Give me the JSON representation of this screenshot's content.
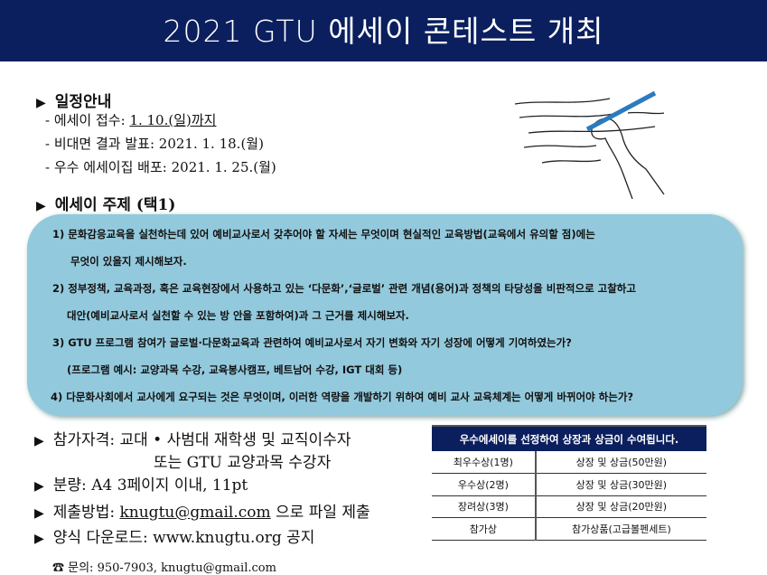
{
  "title": "2021 GTU 에세이 콘테스트 개최",
  "schedule": {
    "heading": "일정안내",
    "items": [
      {
        "label": "- 에세이 접수: ",
        "value": "1. 10.(일)까지"
      },
      {
        "label": "- 비대면 결과 발표: ",
        "value": "2021. 1. 18.(월)"
      },
      {
        "label": "- 우수 에세이집 배포: ",
        "value": "2021. 1. 25.(월)"
      }
    ]
  },
  "topics": {
    "heading": "에세이 주제 (택1)",
    "lines": [
      "1)   문화감응교육을 실천하는데 있어 예비교사로서 갖추어야 할 자세는 무엇이며 현실적인 교육방법(교육에서 유의할 점)에는",
      "무엇이 있을지 제시해보자.",
      "2)   정부정책, 교육과정, 혹은 교육현장에서 사용하고 있는 ‘다문화’,‘글로벌’ 관련 개념(용어)과 정책의 타당성을 비판적으로 고찰하고",
      "대안(예비교사로서 실천할 수 있는 방 안을 포함하여)과 그 근거를 제시해보자.",
      "3)   GTU 프로그램 참여가 글로벌·다문화교육과 관련하여 예비교사로서  자기 변화와  자기 성장에 어떻게 기여하였는가?",
      "(프로그램 예시: 교양과목 수강, 교육봉사캠프, 베트남어 수강, IGT 대회 등)",
      "4) 다문화사회에서 교사에게 요구되는 것은 무엇이며, 이러한 역량을 개발하기 위하여 예비 교사 교육체계는 어떻게 바뀌어야 하는가?"
    ]
  },
  "info": {
    "eligibility": "참가자격: 교대 • 사범대 재학생 및 교직이수자",
    "eligibility2": "또는 GTU 교양과목 수강자",
    "length": "분량: A4 3페이지 이내, 11pt",
    "submit_label": "제출방법: ",
    "submit_email": "knugtu@gmail.com",
    "submit_suffix": " 으로 파일 제출",
    "download": "양식 다운로드: www.knugtu.org 공지"
  },
  "awards": {
    "header": "우수에세이를 선정하여 상장과 상금이 수여됩니다.",
    "rows": [
      [
        "최우수상(1명)",
        "상장 및 상금(50만원)"
      ],
      [
        "우수상(2명)",
        "상장 및 상금(30만원)"
      ],
      [
        "장려상(3명)",
        "상장 및 상금(20만원)"
      ],
      [
        "참가상",
        "참가상품(고급볼펜세트)"
      ]
    ]
  },
  "contact": "☎ 문의: 950-7903, knugtu@gmail.com",
  "colors": {
    "navy": "#0b1f5e",
    "topic_bg": "#93c9dc"
  }
}
